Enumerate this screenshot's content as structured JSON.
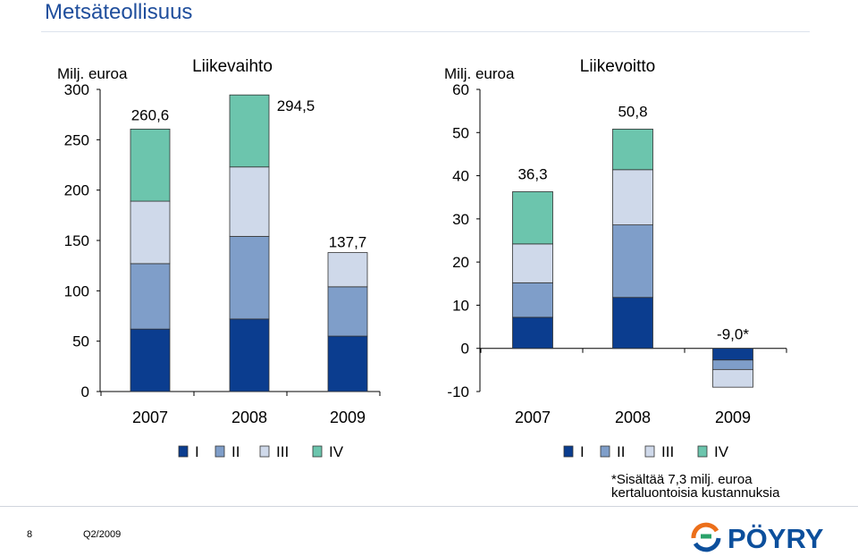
{
  "page": {
    "title": "Metsäteollisuus",
    "page_number": "8",
    "period": "Q2/2009",
    "footnote_line1": "*Sisältää 7,3 milj. euroa",
    "footnote_line2": "kertaluontoisia kustannuksia",
    "logo_text": "PÖYRY",
    "colors": {
      "title": "#1f4e9c",
      "q1": "#0b3d8f",
      "q2": "#7f9ec9",
      "q3": "#cfd9ea",
      "q4": "#6cc5ad"
    }
  },
  "chart_data": [
    {
      "type": "bar",
      "stacked": true,
      "title": "Liikevaihto",
      "unit_label": "Milj. euroa",
      "categories": [
        "2007",
        "2008",
        "2009"
      ],
      "series": [
        {
          "name": "I",
          "values": [
            62,
            72,
            55
          ]
        },
        {
          "name": "II",
          "values": [
            65,
            82,
            49
          ]
        },
        {
          "name": "III",
          "values": [
            62,
            69,
            34
          ]
        },
        {
          "name": "IV",
          "values": [
            71.6,
            71.5,
            0
          ]
        }
      ],
      "totals": [
        "260,6",
        "294,5",
        "137,7"
      ],
      "yticks": [
        "0",
        "50",
        "100",
        "150",
        "200",
        "250",
        "300"
      ],
      "ylim": [
        0,
        300
      ],
      "legend_position": "bottom"
    },
    {
      "type": "bar",
      "stacked": true,
      "title": "Liikevoitto",
      "unit_label": "Milj. euroa",
      "categories": [
        "2007",
        "2008",
        "2009"
      ],
      "series": [
        {
          "name": "I",
          "values": [
            7.2,
            11.8,
            -2.7
          ]
        },
        {
          "name": "II",
          "values": [
            8.0,
            16.8,
            -2.2
          ]
        },
        {
          "name": "III",
          "values": [
            9.0,
            12.8,
            -4.1
          ]
        },
        {
          "name": "IV",
          "values": [
            12.1,
            9.4,
            0
          ]
        }
      ],
      "totals": [
        "36,3",
        "50,8",
        "-9,0*"
      ],
      "yticks": [
        "-10",
        "0",
        "10",
        "20",
        "30",
        "40",
        "50",
        "60"
      ],
      "ylim": [
        -10,
        60
      ],
      "legend_position": "bottom"
    }
  ]
}
